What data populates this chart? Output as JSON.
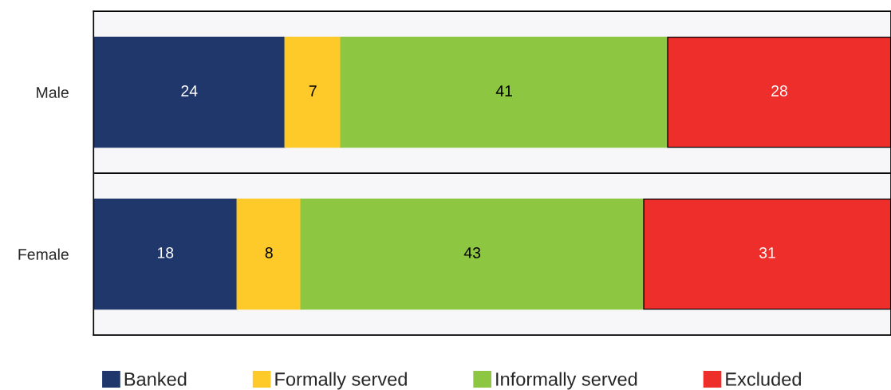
{
  "chart_data": {
    "type": "bar",
    "orientation": "horizontal",
    "stacked": true,
    "categories": [
      "Male",
      "Female"
    ],
    "series": [
      {
        "name": "Banked",
        "color": "#1f376b",
        "values": [
          24,
          18
        ]
      },
      {
        "name": "Formally served",
        "color": "#fdca2a",
        "values": [
          7,
          8
        ]
      },
      {
        "name": "Informally served",
        "color": "#8dc741",
        "values": [
          41,
          43
        ]
      },
      {
        "name": "Excluded",
        "color": "#ee2e2b",
        "values": [
          28,
          31
        ]
      }
    ],
    "xlim": [
      0,
      100
    ],
    "data_labels": true,
    "legend": "bottom",
    "tick_labels": "y"
  }
}
